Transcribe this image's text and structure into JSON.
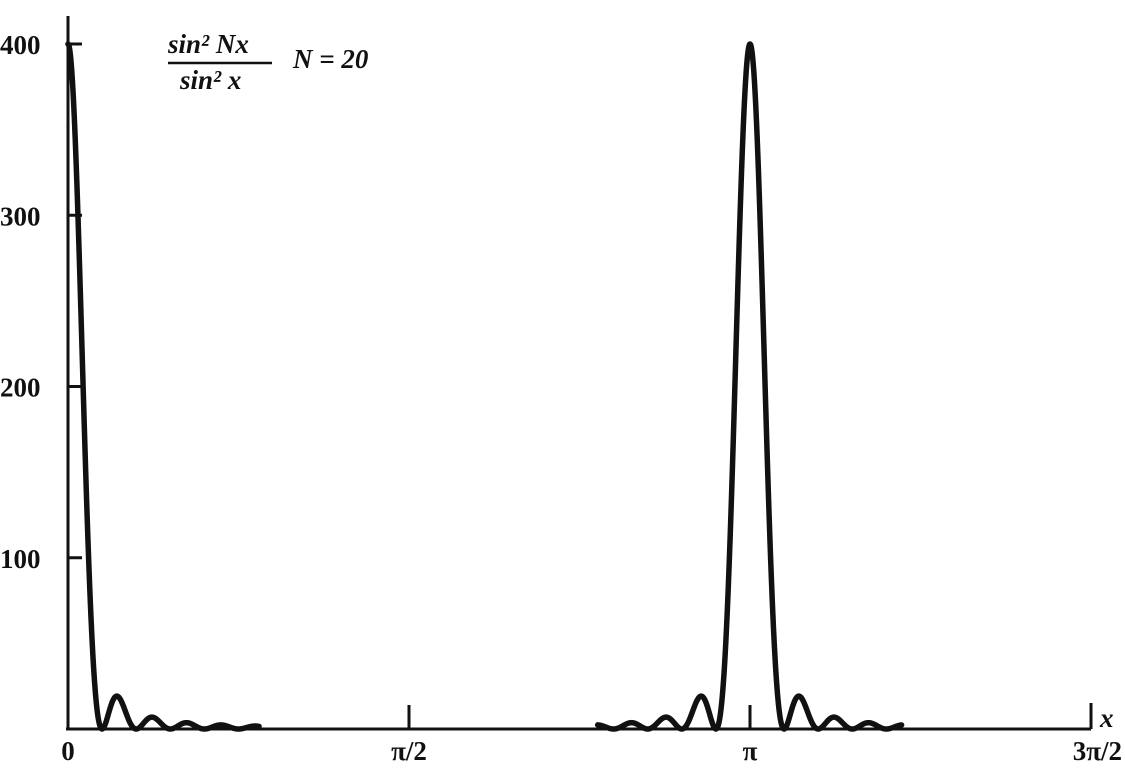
{
  "chart_data": {
    "type": "line",
    "function": "sin^2(Nx)/sin^2(x)",
    "N": 20,
    "xlabel": "x",
    "ylabel": "",
    "xlim_radians": [
      0,
      4.71238898
    ],
    "ylim": [
      0,
      400
    ],
    "x_ticks": [
      {
        "value": 0,
        "label": "0"
      },
      {
        "value": 1.5707963,
        "label": "π/2"
      },
      {
        "value": 3.1415927,
        "label": "π"
      },
      {
        "value": 4.712389,
        "label": "3π/2"
      }
    ],
    "y_ticks": [
      {
        "value": 100,
        "label": "100"
      },
      {
        "value": 200,
        "label": "200"
      },
      {
        "value": 300,
        "label": "300"
      },
      {
        "value": 400,
        "label": "400"
      }
    ],
    "peaks": [
      {
        "x": 0,
        "y": 400
      },
      {
        "x": 3.1415927,
        "y": 400
      }
    ],
    "curve_plotted_ranges": [
      [
        0,
        0.88
      ],
      [
        2.44,
        3.84
      ]
    ],
    "grid": false,
    "annotation": {
      "numerator": "sin² Nx",
      "denominator": "sin² x",
      "parameter_label": "N = 20"
    }
  }
}
